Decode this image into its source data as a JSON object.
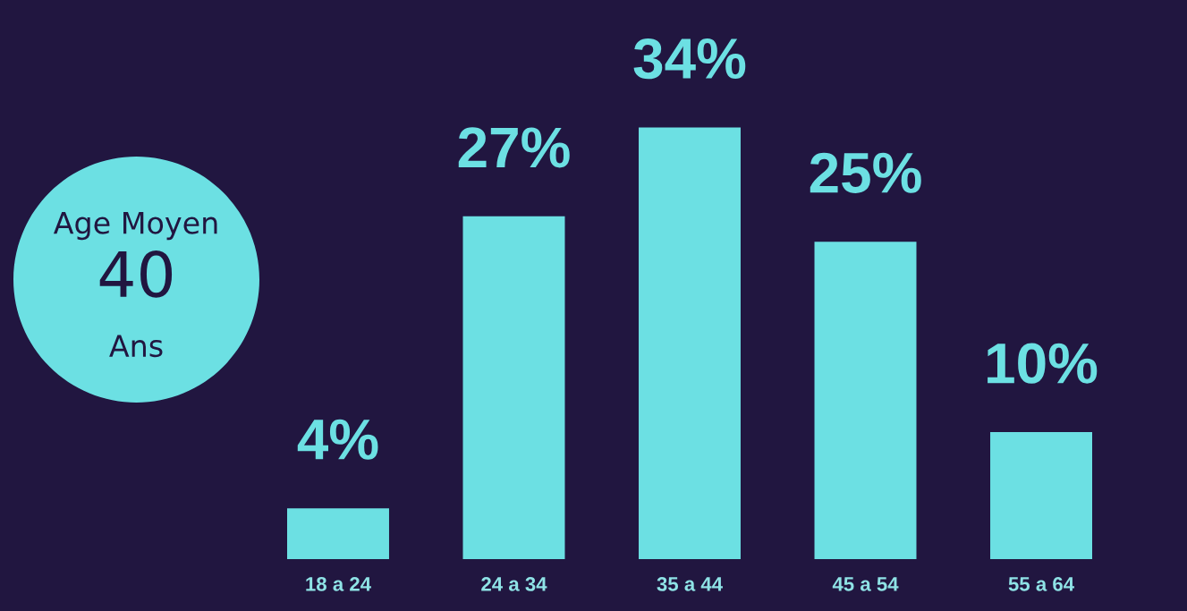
{
  "chart_data": {
    "type": "bar",
    "categories": [
      "18 a 24",
      "24 a 34",
      "35 a 44",
      "45 a 54",
      "55 a 64"
    ],
    "values": [
      4,
      27,
      34,
      25,
      10
    ],
    "color": "#6ce0e3",
    "value_labels": [
      "4%",
      "27%",
      "34%",
      "25%",
      "10%"
    ],
    "annotations": [
      "Age Moyen",
      "40",
      "Ans"
    ]
  }
}
